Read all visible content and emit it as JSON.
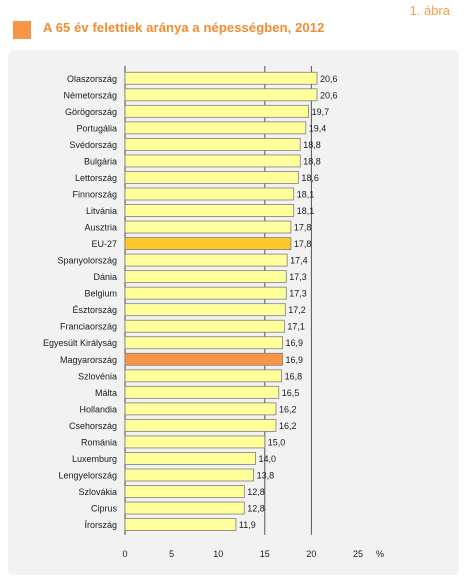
{
  "header": {
    "title": "A 65 év felettiek aránya a népességben, 2012",
    "figure_label": "1. ábra"
  },
  "colors": {
    "accent": "#f79646",
    "title_text": "#f28b30",
    "figure_label": "#f4a04a",
    "panel_bg": "#f2f2f2",
    "bar": "#ffff9c",
    "bar_highlight_eu": "#ffc72c",
    "bar_highlight_hu": "#f79646",
    "bar_stroke": "#7f7f7f",
    "gridline": "#555555"
  },
  "chart_data": {
    "type": "bar",
    "orientation": "horizontal",
    "categories": [
      "Olaszország",
      "Németország",
      "Görögország",
      "Portugália",
      "Svédország",
      "Bulgária",
      "Lettország",
      "Finnország",
      "Litvánia",
      "Ausztria",
      "EU-27",
      "Spanyolország",
      "Dánia",
      "Belgium",
      "Észtország",
      "Franciaország",
      "Egyesült Királyság",
      "Magyarország",
      "Szlovénia",
      "Málta",
      "Hollandia",
      "Csehország",
      "Románia",
      "Luxemburg",
      "Lengyelország",
      "Szlovákia",
      "Ciprus",
      "Írország"
    ],
    "values": [
      20.6,
      20.6,
      19.7,
      19.4,
      18.8,
      18.8,
      18.6,
      18.1,
      18.1,
      17.8,
      17.8,
      17.4,
      17.3,
      17.3,
      17.2,
      17.1,
      16.9,
      16.9,
      16.8,
      16.5,
      16.2,
      16.2,
      15.0,
      14.0,
      13.8,
      12.8,
      12.8,
      11.9
    ],
    "value_labels": [
      "20,6",
      "20,6",
      "19,7",
      "19,4",
      "18,8",
      "18,8",
      "18,6",
      "18,1",
      "18,1",
      "17,8",
      "17,8",
      "17,4",
      "17,3",
      "17,3",
      "17,2",
      "17,1",
      "16,9",
      "16,9",
      "16,8",
      "16,5",
      "16,2",
      "16,2",
      "15,0",
      "14,0",
      "13,8",
      "12,8",
      "12,8",
      "11,9"
    ],
    "highlights": {
      "EU-27": "eu",
      "Magyarország": "hu"
    },
    "xlim": [
      0,
      25
    ],
    "xticks": [
      0,
      5,
      10,
      15,
      20,
      25
    ],
    "xlabel": "%",
    "title": "A 65 év felettiek aránya a népességben, 2012",
    "vertical_gridlines_at": [
      15,
      20
    ]
  }
}
